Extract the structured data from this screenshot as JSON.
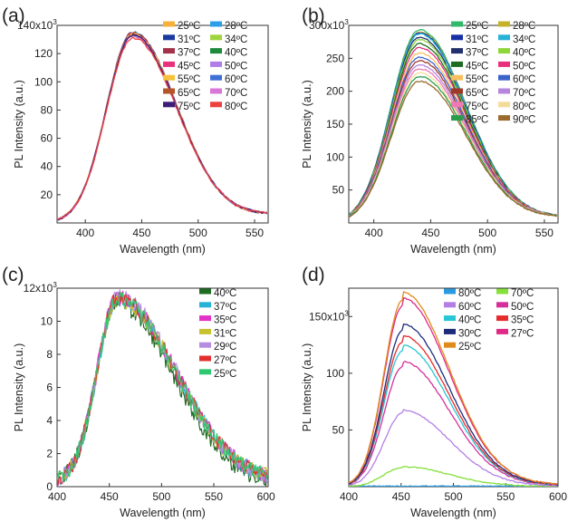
{
  "figure": {
    "description_type": "four-panel PL spectra"
  },
  "chart_data": [
    {
      "type": "line",
      "panel": "(a)",
      "xlabel": "Wavelength (nm)",
      "ylabel": "PL Intensity (a.u.)",
      "xlim": [
        375,
        562
      ],
      "ylim": [
        0,
        140
      ],
      "x_ticks": [
        400,
        450,
        500,
        550
      ],
      "y_ticks": [
        20,
        40,
        60,
        80,
        100,
        120,
        140
      ],
      "y_multiplier": "x10",
      "y_multiplier_exp": "3",
      "legend_cols": 2,
      "peak_x": 442,
      "left_tail": 0.035,
      "right_tail": 0.11,
      "series": [
        {
          "name": "25ºC",
          "peak": 134,
          "color": "#f6b13b"
        },
        {
          "name": "28ºC",
          "peak": 135,
          "color": "#2a9fe8"
        },
        {
          "name": "31ºC",
          "peak": 134,
          "color": "#1b3a9e"
        },
        {
          "name": "34ºC",
          "peak": 133,
          "color": "#9ed53d"
        },
        {
          "name": "37ºC",
          "peak": 135,
          "color": "#a2334b"
        },
        {
          "name": "40ºC",
          "peak": 133,
          "color": "#1f8a3c"
        },
        {
          "name": "45ºC",
          "peak": 134,
          "color": "#e8327c"
        },
        {
          "name": "50ºC",
          "peak": 133,
          "color": "#b07ce6"
        },
        {
          "name": "55ºC",
          "peak": 134,
          "color": "#f8c13c"
        },
        {
          "name": "60ºC",
          "peak": 133,
          "color": "#3f6fd8"
        },
        {
          "name": "65ºC",
          "peak": 133,
          "color": "#b5542a"
        },
        {
          "name": "70ºC",
          "peak": 132,
          "color": "#d877d8"
        },
        {
          "name": "75ºC",
          "peak": 133,
          "color": "#3d1d7a"
        },
        {
          "name": "80ºC",
          "peak": 131,
          "color": "#ee4040"
        }
      ]
    },
    {
      "type": "line",
      "panel": "(b)",
      "xlabel": "Wavelength (nm)",
      "ylabel": "PL Intensity (a.u.)",
      "xlim": [
        378,
        562
      ],
      "ylim": [
        0,
        300
      ],
      "x_ticks": [
        400,
        450,
        500,
        550
      ],
      "y_ticks": [
        50,
        100,
        150,
        200,
        250,
        300
      ],
      "y_multiplier": "x10",
      "y_multiplier_exp": "3",
      "legend_cols": 2,
      "peak_x": 440,
      "left_tail": 0.04,
      "right_tail": 0.05,
      "series": [
        {
          "name": "25ºC",
          "peak": 293,
          "color": "#2fba6a"
        },
        {
          "name": "28ºC",
          "peak": 290,
          "color": "#c8b12a"
        },
        {
          "name": "31ºC",
          "peak": 289,
          "color": "#1730a6"
        },
        {
          "name": "34ºC",
          "peak": 287,
          "color": "#27b3d6"
        },
        {
          "name": "37ºC",
          "peak": 282,
          "color": "#23306e"
        },
        {
          "name": "40ºC",
          "peak": 278,
          "color": "#8ed63a"
        },
        {
          "name": "45ºC",
          "peak": 272,
          "color": "#1e6b22"
        },
        {
          "name": "50ºC",
          "peak": 266,
          "color": "#e8317a"
        },
        {
          "name": "55ºC",
          "peak": 258,
          "color": "#f8c060"
        },
        {
          "name": "60ºC",
          "peak": 252,
          "color": "#3b63cc"
        },
        {
          "name": "65ºC",
          "peak": 246,
          "color": "#a0382a"
        },
        {
          "name": "70ºC",
          "peak": 240,
          "color": "#b585e0"
        },
        {
          "name": "75ºC",
          "peak": 234,
          "color": "#ef78b4"
        },
        {
          "name": "80ºC",
          "peak": 228,
          "color": "#f3dc9a"
        },
        {
          "name": "85ºC",
          "peak": 222,
          "color": "#2a9c4c"
        },
        {
          "name": "90ºC",
          "peak": 215,
          "color": "#9b6a2c"
        }
      ]
    },
    {
      "type": "line",
      "panel": "(c)",
      "xlabel": "Wavelength (nm)",
      "ylabel": "PL Intensity (a.u.)",
      "xlim": [
        400,
        602
      ],
      "ylim": [
        0,
        12
      ],
      "x_ticks": [
        400,
        450,
        500,
        550,
        600
      ],
      "y_ticks": [
        0,
        2,
        4,
        6,
        8,
        10,
        12
      ],
      "y_multiplier": "x10",
      "y_multiplier_exp": "3",
      "legend_cols": 1,
      "peak_x": 458,
      "noise": 0.6,
      "series": [
        {
          "name": "40ºC",
          "peak": 11.0,
          "color": "#1e6b22"
        },
        {
          "name": "37ºC",
          "peak": 11.0,
          "color": "#27b3d6"
        },
        {
          "name": "35ºC",
          "peak": 11.1,
          "color": "#e232c8"
        },
        {
          "name": "31ºC",
          "peak": 11.0,
          "color": "#c8c230"
        },
        {
          "name": "29ºC",
          "peak": 11.2,
          "color": "#b48ce0"
        },
        {
          "name": "27ºC",
          "peak": 11.1,
          "color": "#e23030"
        },
        {
          "name": "25ºC",
          "peak": 11.0,
          "color": "#2fc870"
        }
      ]
    },
    {
      "type": "line",
      "panel": "(d)",
      "xlabel": "Wavelength (nm)",
      "ylabel": "PL Intensity (a.u.)",
      "xlim": [
        400,
        600
      ],
      "ylim": [
        0,
        175
      ],
      "x_ticks": [
        400,
        450,
        500,
        550,
        600
      ],
      "y_ticks": [
        50,
        100,
        150
      ],
      "y_multiplier": "x10",
      "y_multiplier_exp": "3",
      "legend_cols": 2,
      "peak_x": 452,
      "series": [
        {
          "name": "80ºC",
          "peak": 0,
          "color": "#2a9be0"
        },
        {
          "name": "70ºC",
          "peak": 17,
          "color": "#84e03a"
        },
        {
          "name": "60ºC",
          "peak": 65,
          "color": "#b47fe4"
        },
        {
          "name": "50ºC",
          "peak": 106,
          "color": "#d62f9c"
        },
        {
          "name": "40ºC",
          "peak": 120,
          "color": "#27c6d6"
        },
        {
          "name": "35ºC",
          "peak": 128,
          "color": "#e62b2b"
        },
        {
          "name": "30ºC",
          "peak": 138,
          "color": "#1d2c7a"
        },
        {
          "name": "27ºC",
          "peak": 160,
          "color": "#e02a86"
        },
        {
          "name": "25ºC",
          "peak": 165,
          "color": "#e08a1c"
        }
      ]
    }
  ]
}
